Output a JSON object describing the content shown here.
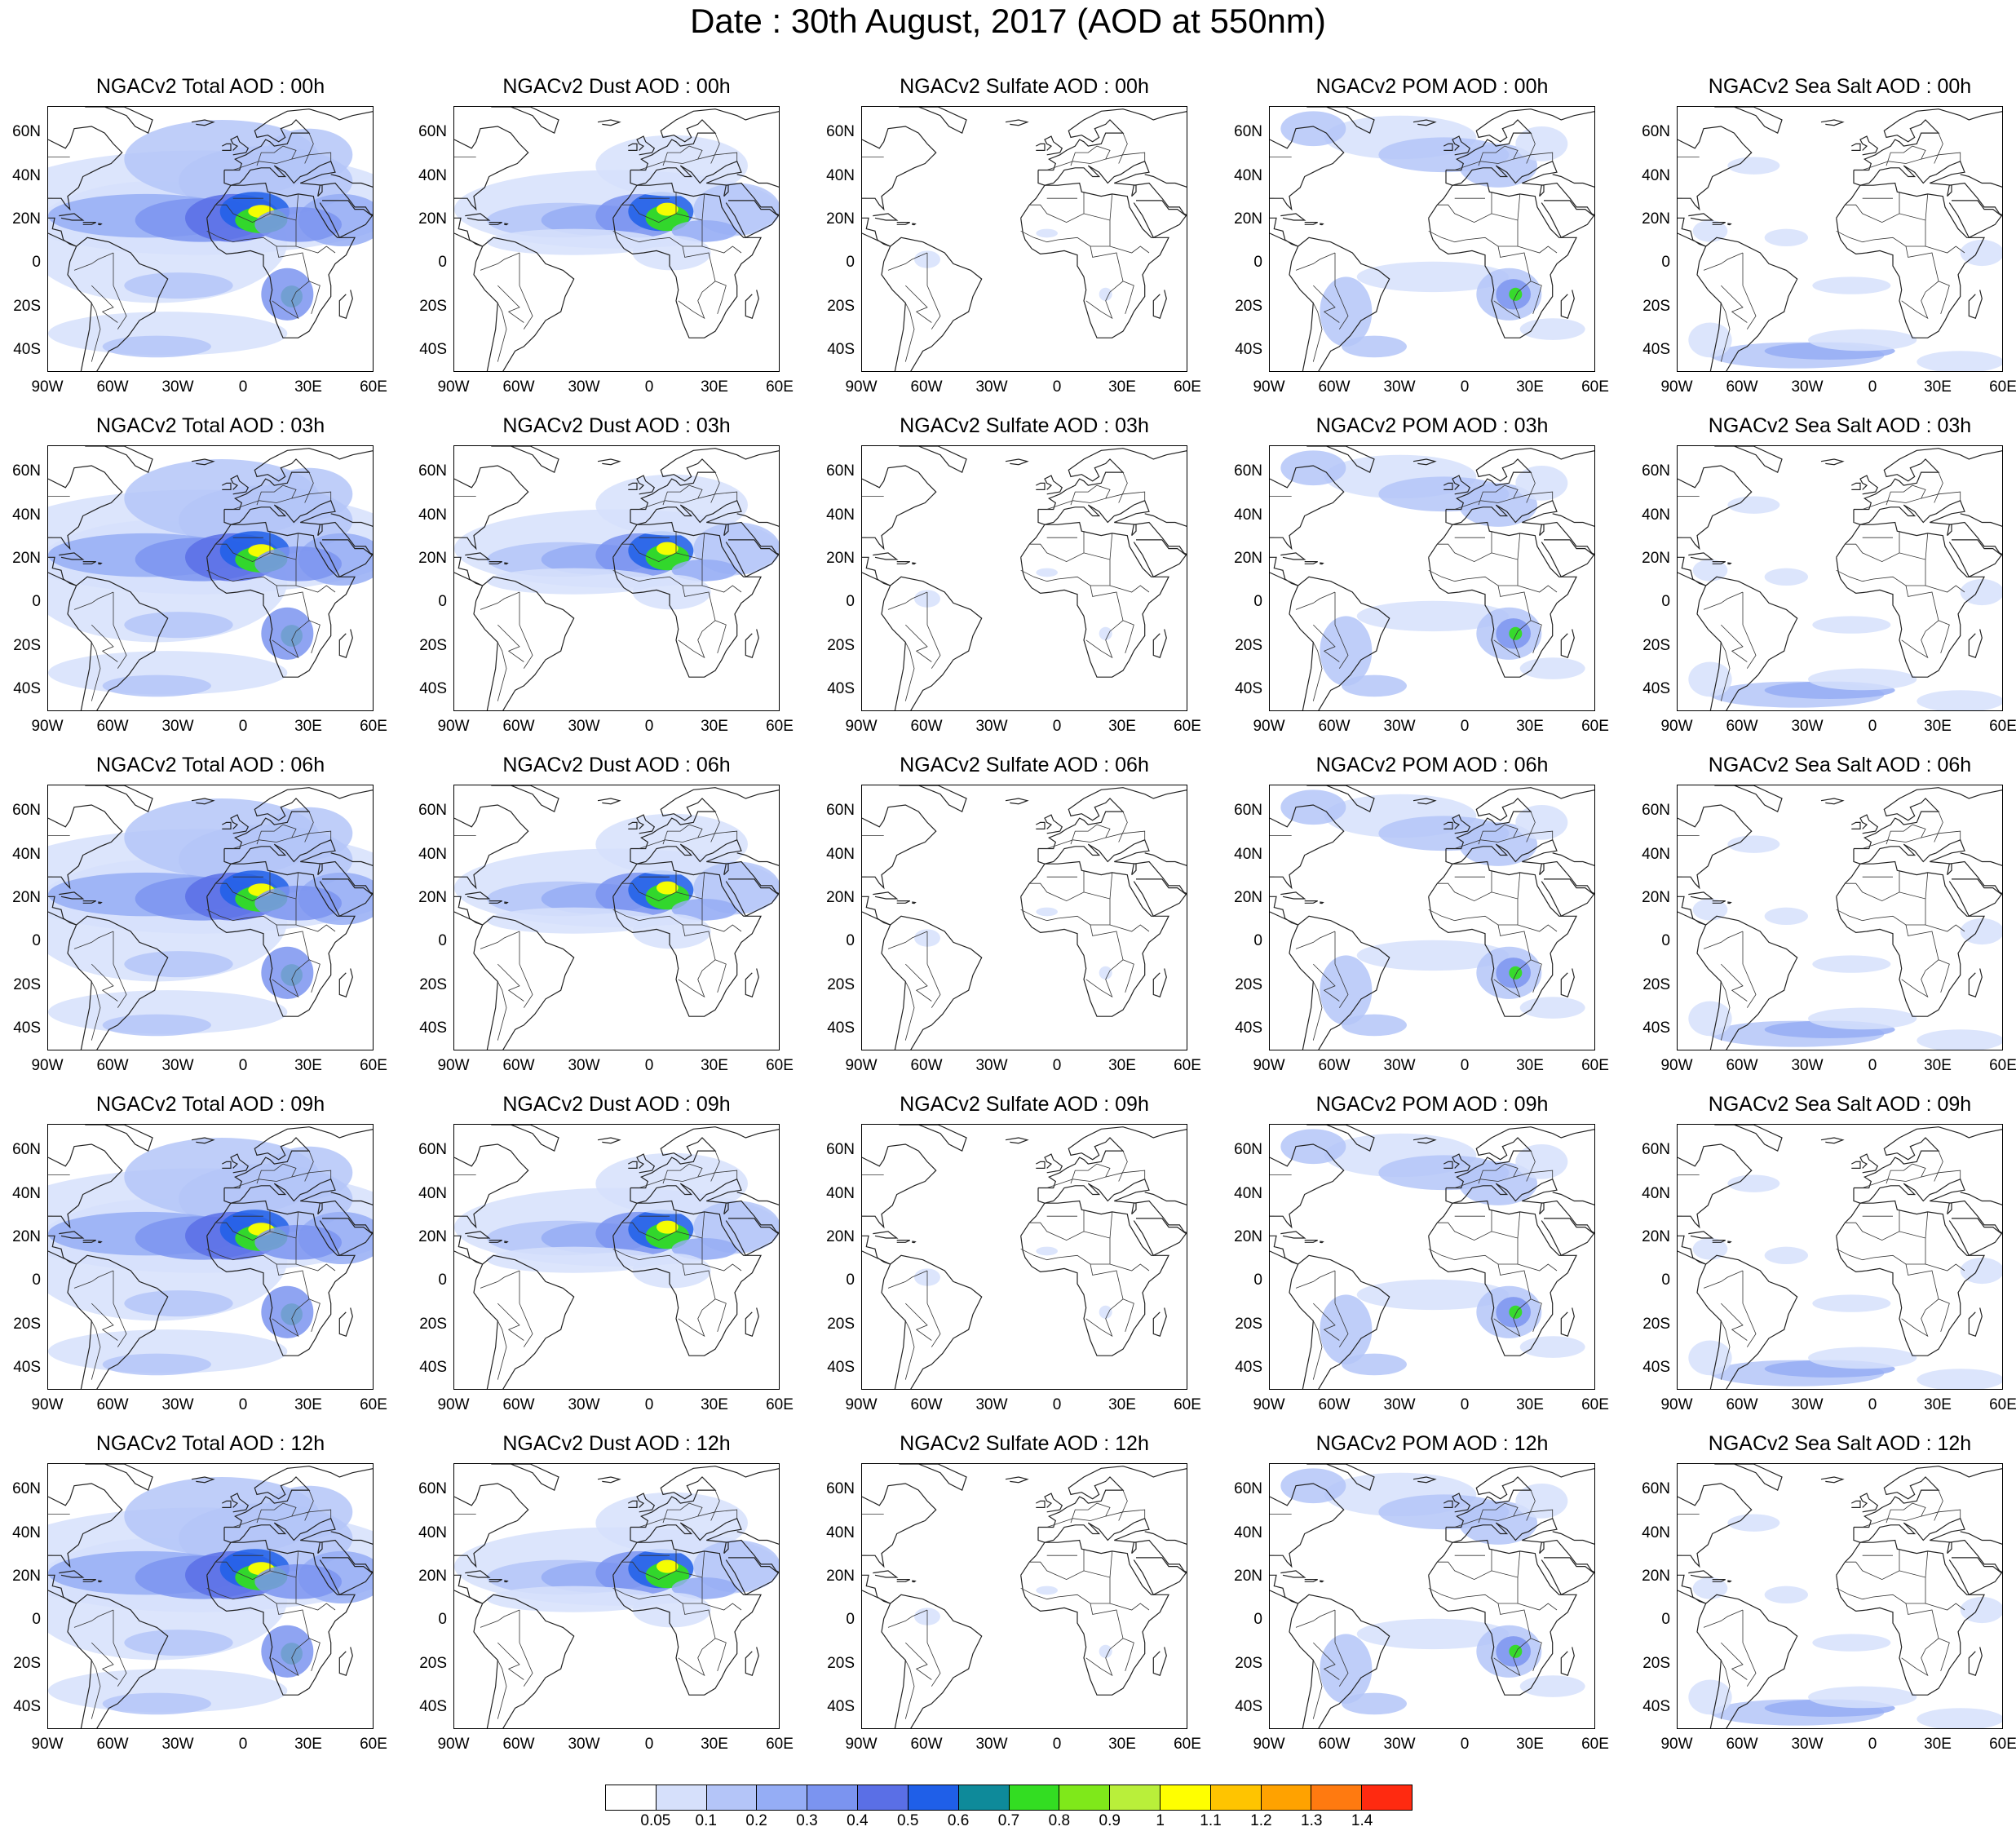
{
  "title": "Date : 30th August, 2017 (AOD at 550nm)",
  "columns": [
    "total",
    "dust",
    "sulfate",
    "pom",
    "seasalt"
  ],
  "panel_titles": [
    [
      "NGACv2 Total AOD : 00h",
      "NGACv2 Dust AOD : 00h",
      "NGACv2 Sulfate AOD : 00h",
      "NGACv2 POM AOD : 00h",
      "NGACv2 Sea Salt AOD : 00h"
    ],
    [
      "NGACv2 Total AOD : 03h",
      "NGACv2 Dust AOD : 03h",
      "NGACv2 Sulfate AOD : 03h",
      "NGACv2 POM AOD : 03h",
      "NGACv2 Sea Salt AOD : 03h"
    ],
    [
      "NGACv2 Total AOD : 06h",
      "NGACv2 Dust AOD : 06h",
      "NGACv2 Sulfate AOD : 06h",
      "NGACv2 POM AOD : 06h",
      "NGACv2 Sea Salt AOD : 06h"
    ],
    [
      "NGACv2 Total AOD : 09h",
      "NGACv2 Dust AOD : 09h",
      "NGACv2 Sulfate AOD : 09h",
      "NGACv2 POM AOD : 09h",
      "NGACv2 Sea Salt  AOD : 09h"
    ],
    [
      "NGACv2 Total AOD  : 12h",
      "NGACv2 Dust AOD : 12h",
      "NGACv2 Sulfate AOD : 12h",
      "NGACv2 POM  AOD : 12h",
      "NGACv2 Sea Salt  AOD : 12h"
    ]
  ],
  "lat_ticks": [
    "60N",
    "40N",
    "20N",
    "0",
    "20S",
    "40S"
  ],
  "lon_ticks": [
    "90W",
    "60W",
    "30W",
    "0",
    "30E",
    "60E"
  ],
  "colorbar": {
    "colors": [
      "#ffffff",
      "#d6e0fb",
      "#b4c5f8",
      "#95adf5",
      "#7b94f0",
      "#5a6fe6",
      "#1f5fe8",
      "#0e8a9a",
      "#33dd22",
      "#7fe81a",
      "#b9ef3a",
      "#ffff00",
      "#ffc400",
      "#ffa200",
      "#ff7a10",
      "#ff2a10"
    ],
    "labels": [
      "0.05",
      "0.1",
      "0.2",
      "0.3",
      "0.4",
      "0.5",
      "0.6",
      "0.7",
      "0.8",
      "0.9",
      "1",
      "1.1",
      "1.2",
      "1.3",
      "1.4"
    ]
  }
}
